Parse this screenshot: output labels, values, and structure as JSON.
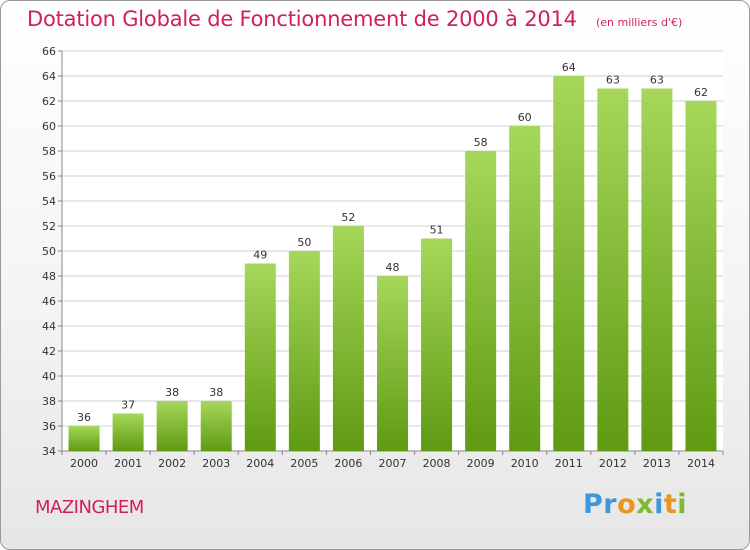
{
  "title": "Dotation Globale de Fonctionnement de 2000 à 2014",
  "subtitle": "(en milliers d'€)",
  "city": "MAZINGHEM",
  "logo_text": "Proxiti",
  "colors": {
    "title": "#d01f5a",
    "bar_light": "#a6d75a",
    "bar_dark": "#5f9a12",
    "grid": "#cfcfcf"
  },
  "chart_data": {
    "type": "bar",
    "categories": [
      "2000",
      "2001",
      "2002",
      "2003",
      "2004",
      "2005",
      "2006",
      "2007",
      "2008",
      "2009",
      "2010",
      "2011",
      "2012",
      "2013",
      "2014"
    ],
    "values": [
      36,
      37,
      38,
      38,
      49,
      50,
      52,
      48,
      51,
      58,
      60,
      64,
      63,
      63,
      62
    ],
    "ylim": [
      34,
      66
    ],
    "yticks": [
      34,
      36,
      38,
      40,
      42,
      44,
      46,
      48,
      50,
      52,
      54,
      56,
      58,
      60,
      62,
      64,
      66
    ],
    "grid": true,
    "data_labels": true
  }
}
